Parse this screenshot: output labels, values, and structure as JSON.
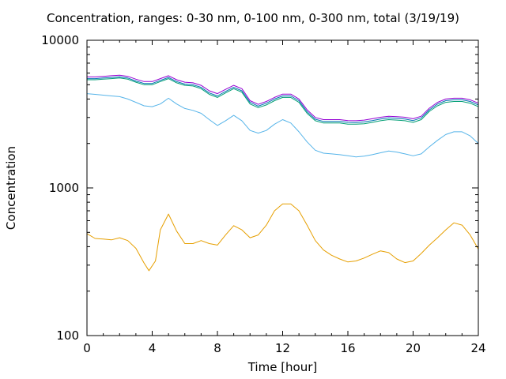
{
  "chart_data": {
    "type": "line",
    "title": "Concentration, ranges: 0-30 nm, 0-100 nm, 0-300 nm, total (3/19/19)",
    "xlabel": "Time [hour]",
    "ylabel": "Concentration",
    "xlim": [
      0,
      24
    ],
    "ylim": [
      100,
      10000
    ],
    "yscale": "log",
    "grid": false,
    "legend": "none",
    "x_ticks": [
      "0",
      "4",
      "8",
      "12",
      "16",
      "20",
      "24"
    ],
    "y_ticks": [
      "100",
      "1000",
      "10000"
    ],
    "series": [
      {
        "color": "#e69f00",
        "x": [
          0,
          0.5,
          1,
          1.5,
          2,
          2.5,
          3,
          3.5,
          3.8,
          4.2,
          4.5,
          5,
          5.5,
          6,
          6.5,
          7,
          7.5,
          8,
          8.5,
          9,
          9.5,
          10,
          10.5,
          11,
          11.5,
          12,
          12.5,
          13,
          13.5,
          14,
          14.5,
          15,
          15.5,
          16,
          16.5,
          17,
          17.5,
          18,
          18.5,
          19,
          19.5,
          20,
          20.5,
          21,
          21.5,
          22,
          22.5,
          23,
          23.5,
          24
        ],
        "y": [
          490,
          455,
          450,
          445,
          460,
          440,
          390,
          310,
          275,
          320,
          520,
          665,
          510,
          420,
          420,
          440,
          420,
          410,
          480,
          555,
          520,
          460,
          480,
          560,
          700,
          780,
          780,
          700,
          560,
          440,
          380,
          350,
          330,
          315,
          320,
          335,
          355,
          375,
          365,
          330,
          312,
          320,
          360,
          410,
          460,
          520,
          580,
          560,
          480,
          385
        ]
      },
      {
        "color": "#56b4e9",
        "x": [
          0,
          0.5,
          1,
          1.5,
          2,
          2.5,
          3,
          3.5,
          4,
          4.5,
          5,
          5.5,
          6,
          6.5,
          7,
          7.5,
          8,
          8.5,
          9,
          9.5,
          10,
          10.5,
          11,
          11.5,
          12,
          12.5,
          13,
          13.5,
          14,
          14.5,
          15,
          15.5,
          16,
          16.5,
          17,
          17.5,
          18,
          18.5,
          19,
          19.5,
          20,
          20.5,
          21,
          21.5,
          22,
          22.5,
          23,
          23.5,
          24
        ],
        "y": [
          4350,
          4300,
          4250,
          4200,
          4150,
          4000,
          3800,
          3600,
          3550,
          3700,
          4050,
          3700,
          3450,
          3350,
          3200,
          2900,
          2650,
          2850,
          3100,
          2850,
          2450,
          2350,
          2450,
          2700,
          2900,
          2750,
          2400,
          2050,
          1800,
          1720,
          1700,
          1680,
          1650,
          1620,
          1640,
          1680,
          1730,
          1780,
          1750,
          1700,
          1650,
          1700,
          1900,
          2100,
          2300,
          2400,
          2400,
          2250,
          2000
        ]
      },
      {
        "color": "#009e73",
        "x": [
          0,
          0.5,
          1,
          1.5,
          2,
          2.5,
          3,
          3.5,
          4,
          4.5,
          5,
          5.5,
          6,
          6.5,
          7,
          7.5,
          8,
          8.5,
          9,
          9.5,
          10,
          10.5,
          11,
          11.5,
          12,
          12.5,
          13,
          13.5,
          14,
          14.5,
          15,
          15.5,
          16,
          16.5,
          17,
          17.5,
          18,
          18.5,
          19,
          19.5,
          20,
          20.5,
          21,
          21.5,
          22,
          22.5,
          23,
          23.5,
          24
        ],
        "y": [
          5400,
          5400,
          5450,
          5500,
          5550,
          5450,
          5200,
          5000,
          5000,
          5250,
          5500,
          5150,
          4950,
          4900,
          4700,
          4300,
          4100,
          4400,
          4700,
          4450,
          3700,
          3500,
          3650,
          3900,
          4100,
          4100,
          3800,
          3200,
          2850,
          2750,
          2750,
          2750,
          2700,
          2700,
          2720,
          2780,
          2850,
          2900,
          2880,
          2850,
          2780,
          2900,
          3300,
          3600,
          3800,
          3850,
          3850,
          3750,
          3550
        ]
      },
      {
        "color": "#0072b2",
        "x": [
          0,
          0.5,
          1,
          1.5,
          2,
          2.5,
          3,
          3.5,
          4,
          4.5,
          5,
          5.5,
          6,
          6.5,
          7,
          7.5,
          8,
          8.5,
          9,
          9.5,
          10,
          10.5,
          11,
          11.5,
          12,
          12.5,
          13,
          13.5,
          14,
          14.5,
          15,
          15.5,
          16,
          16.5,
          17,
          17.5,
          18,
          18.5,
          19,
          19.5,
          20,
          20.5,
          21,
          21.5,
          22,
          22.5,
          23,
          23.5,
          24
        ],
        "y": [
          5500,
          5500,
          5550,
          5600,
          5650,
          5550,
          5300,
          5100,
          5100,
          5350,
          5600,
          5250,
          5050,
          5000,
          4800,
          4400,
          4200,
          4500,
          4800,
          4550,
          3800,
          3580,
          3750,
          4000,
          4200,
          4200,
          3900,
          3280,
          2920,
          2820,
          2820,
          2820,
          2780,
          2770,
          2800,
          2860,
          2930,
          2980,
          2960,
          2930,
          2860,
          2980,
          3380,
          3700,
          3900,
          3950,
          3950,
          3850,
          3650
        ]
      },
      {
        "color": "#9400d3",
        "x": [
          0,
          0.5,
          1,
          1.5,
          2,
          2.5,
          3,
          3.5,
          4,
          4.5,
          5,
          5.5,
          6,
          6.5,
          7,
          7.5,
          8,
          8.5,
          9,
          9.5,
          10,
          10.5,
          11,
          11.5,
          12,
          12.5,
          13,
          13.5,
          14,
          14.5,
          15,
          15.5,
          16,
          16.5,
          17,
          17.5,
          18,
          18.5,
          19,
          19.5,
          20,
          20.5,
          21,
          21.5,
          22,
          22.5,
          23,
          23.5,
          24
        ],
        "y": [
          5650,
          5650,
          5700,
          5750,
          5800,
          5700,
          5450,
          5250,
          5250,
          5500,
          5750,
          5400,
          5200,
          5150,
          4950,
          4550,
          4350,
          4650,
          4950,
          4700,
          3900,
          3680,
          3850,
          4100,
          4320,
          4320,
          4000,
          3380,
          3000,
          2900,
          2900,
          2900,
          2860,
          2850,
          2880,
          2940,
          3010,
          3060,
          3040,
          3010,
          2940,
          3060,
          3470,
          3800,
          4000,
          4050,
          4050,
          3950,
          3750
        ]
      }
    ]
  }
}
